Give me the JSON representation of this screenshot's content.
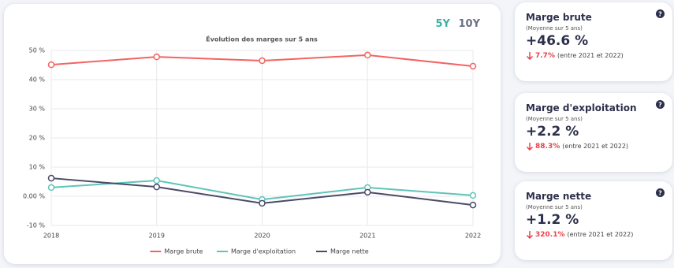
{
  "chart_data": {
    "type": "line",
    "title": "Évolution des marges sur 5 ans",
    "categories": [
      "2018",
      "2019",
      "2020",
      "2021",
      "2022"
    ],
    "series": [
      {
        "name": "Marge brute",
        "color": "#f26461",
        "values": [
          45.1,
          47.8,
          46.5,
          48.4,
          44.6
        ]
      },
      {
        "name": "Marge d'exploitation",
        "color": "#5fc4b8",
        "values": [
          3.0,
          5.4,
          -1.1,
          3.0,
          0.3
        ]
      },
      {
        "name": "Marge nette",
        "color": "#4b4a68",
        "values": [
          6.2,
          3.2,
          -2.4,
          1.4,
          -3.0
        ]
      }
    ],
    "ylim": [
      -10,
      50
    ],
    "yticks": [
      {
        "value": -10,
        "label": "-10 %"
      },
      {
        "value": 0,
        "label": "0.00 %"
      },
      {
        "value": 10,
        "label": "10 %"
      },
      {
        "value": 20,
        "label": "20 %"
      },
      {
        "value": 30,
        "label": "30 %"
      },
      {
        "value": 40,
        "label": "40 %"
      },
      {
        "value": 50,
        "label": "50 %"
      }
    ],
    "grid": true,
    "legend": "bottom"
  },
  "toggle": {
    "options": [
      "5Y",
      "10Y"
    ]
  },
  "cards": [
    {
      "title": "Marge brute",
      "subtitle": "(Moyenne sur 5 ans)",
      "value": "+46.6 %",
      "change": "7.7%",
      "note": "(entre 2021 et 2022)"
    },
    {
      "title": "Marge d'exploitation",
      "subtitle": "(Moyenne sur 5 ans)",
      "value": "+2.2 %",
      "change": "88.3%",
      "note": "(entre 2021 et 2022)"
    },
    {
      "title": "Marge nette",
      "subtitle": "(Moyenne sur 5 ans)",
      "value": "+1.2 %",
      "change": "320.1%",
      "note": "(entre 2021 et 2022)"
    }
  ]
}
